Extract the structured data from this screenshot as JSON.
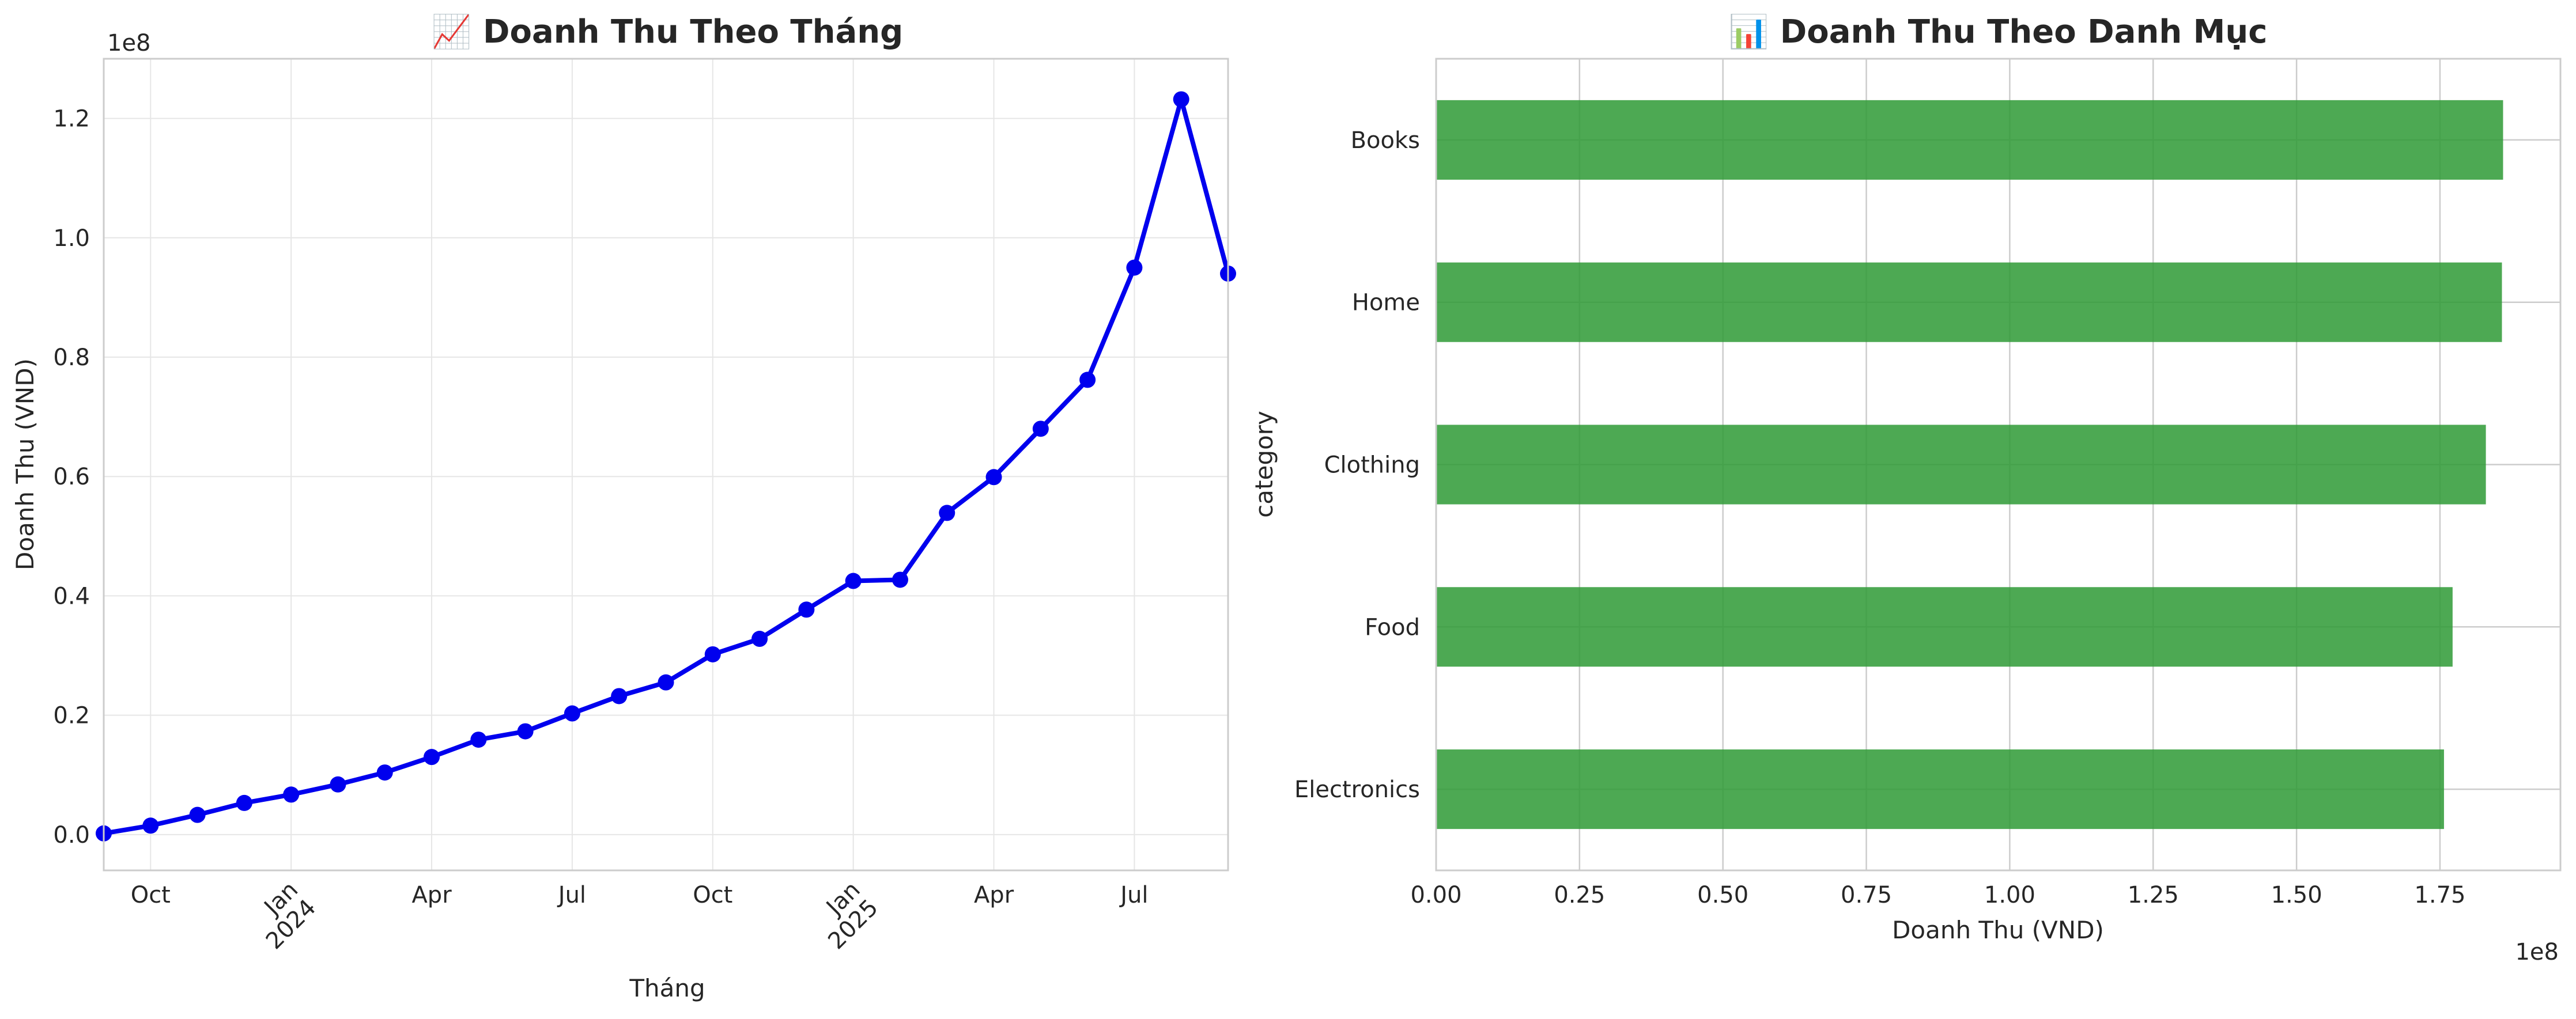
{
  "chart_data": [
    {
      "type": "line",
      "title": "📈 Doanh Thu Theo Tháng",
      "xlabel": "Tháng",
      "ylabel": "Doanh Thu (VND)",
      "y_offset_label": "1e8",
      "x_tick_labels": [
        {
          "date": "2023-10",
          "label": "Oct"
        },
        {
          "date": "2024-01",
          "label": "Jan\n2024"
        },
        {
          "date": "2024-04",
          "label": "Apr"
        },
        {
          "date": "2024-07",
          "label": "Jul"
        },
        {
          "date": "2024-10",
          "label": "Oct"
        },
        {
          "date": "2025-01",
          "label": "Jan\n2025"
        },
        {
          "date": "2025-04",
          "label": "Apr"
        },
        {
          "date": "2025-07",
          "label": "Jul"
        }
      ],
      "y_ticks": [
        0,
        20000000,
        40000000,
        60000000,
        80000000,
        100000000,
        120000000
      ],
      "y_tick_labels": [
        "0.0",
        "0.2",
        "0.4",
        "0.6",
        "0.8",
        "1.0",
        "1.2"
      ],
      "xlim": [
        "2023-09",
        "2025-09"
      ],
      "ylim": [
        -6000000,
        130000000
      ],
      "grid": true,
      "color": "#0000ee",
      "series": [
        {
          "x": [
            "2023-09",
            "2023-10",
            "2023-11",
            "2023-12",
            "2024-01",
            "2024-02",
            "2024-03",
            "2024-04",
            "2024-05",
            "2024-06",
            "2024-07",
            "2024-08",
            "2024-09",
            "2024-10",
            "2024-11",
            "2024-12",
            "2025-01",
            "2025-02",
            "2025-03",
            "2025-04",
            "2025-05",
            "2025-06",
            "2025-07",
            "2025-08",
            "2025-09"
          ],
          "values": [
            200000,
            1500000,
            3300000,
            5300000,
            6700000,
            8400000,
            10400000,
            13000000,
            15900000,
            17300000,
            20300000,
            23200000,
            25500000,
            30200000,
            32800000,
            37700000,
            42500000,
            42700000,
            53900000,
            59900000,
            68000000,
            76200000,
            95000000,
            123200000,
            94000000
          ]
        }
      ]
    },
    {
      "type": "bar",
      "orientation": "horizontal",
      "title": "📊 Doanh Thu Theo Danh Mục",
      "xlabel": "Doanh Thu (VND)",
      "ylabel": "category",
      "x_offset_label": "1e8",
      "categories": [
        "Books",
        "Home",
        "Clothing",
        "Food",
        "Electronics"
      ],
      "values": [
        186000000,
        185800000,
        183000000,
        177200000,
        175700000
      ],
      "x_ticks": [
        0,
        25000000,
        50000000,
        75000000,
        100000000,
        125000000,
        150000000,
        175000000
      ],
      "x_tick_labels": [
        "0.00",
        "0.25",
        "0.50",
        "0.75",
        "1.00",
        "1.25",
        "1.50",
        "1.75"
      ],
      "xlim": [
        0,
        196000000
      ],
      "grid": true,
      "color": "#2e9a35"
    }
  ]
}
